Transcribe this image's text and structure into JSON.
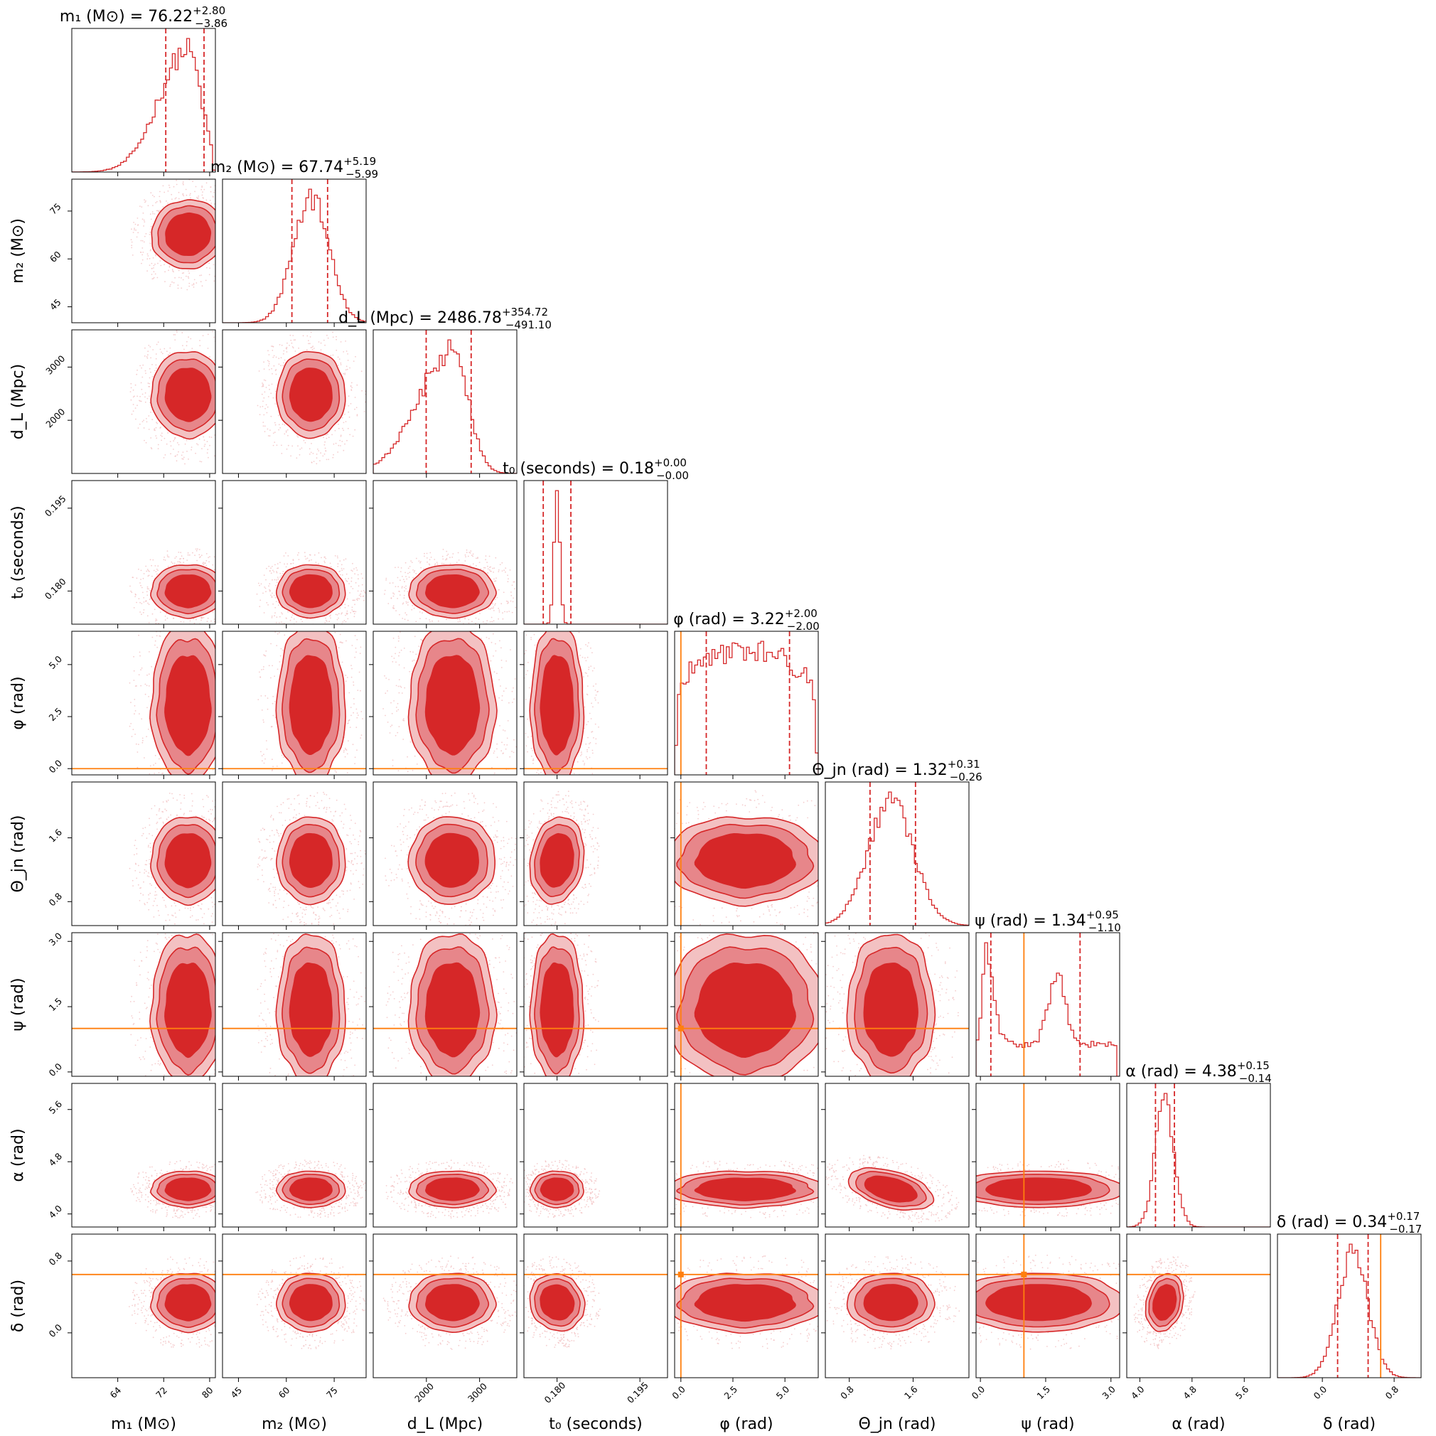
{
  "colors": {
    "posterior": "#d62728",
    "level_light": "#f3c1c2",
    "level_mid": "#e7868a",
    "level_core": "#d62728",
    "truth": "#ff7f0e",
    "frame": "#000000",
    "background": "#ffffff"
  },
  "chart_data": {
    "type": "corner",
    "parameters": [
      {
        "key": "m1",
        "label": "m1 (M⊙)",
        "axis_label": "m₁ (M⊙)",
        "title": "m₁ (M⊙) = 76.22",
        "median": 76.22,
        "plus": "+2.80",
        "minus": "−3.86",
        "range": [
          56,
          81
        ],
        "ticks": [
          64,
          72,
          80
        ],
        "truth": null,
        "dist": "skew",
        "kde_width": 0.22
      },
      {
        "key": "m2",
        "label": "m2 (M⊙)",
        "axis_label": "m₂ (M⊙)",
        "title": "m₂ (M⊙) = 67.74",
        "median": 67.74,
        "plus": "+5.19",
        "minus": "−5.99",
        "range": [
          40,
          85
        ],
        "ticks": [
          45,
          60,
          75
        ],
        "truth": null,
        "dist": "gauss",
        "kde_width": 0.22
      },
      {
        "key": "dL",
        "label": "dL (Mpc)",
        "axis_label": "d_L (Mpc)",
        "title": "d_L (Mpc) = 2486.78",
        "median": 2486.78,
        "plus": "+354.72",
        "minus": "−491.10",
        "range": [
          1000,
          3700
        ],
        "ticks": [
          2000,
          3000
        ],
        "truth": null,
        "dist": "skew",
        "kde_width": 0.22
      },
      {
        "key": "t0",
        "label": "t0 (seconds)",
        "axis_label": "t₀ (seconds)",
        "title": "t₀ (seconds) = 0.18",
        "median": 0.18,
        "plus": "+0.00",
        "minus": "−0.00",
        "range": [
          0.174,
          0.2
        ],
        "ticks": [
          0.18,
          0.195
        ],
        "tick_labels": [
          "0.180",
          "0.195"
        ],
        "truth": null,
        "dist": "gauss",
        "kde_width": 0.14
      },
      {
        "key": "phi",
        "label": "φ (rad)",
        "axis_label": "φ (rad)",
        "title": "φ (rad) = 3.22",
        "median": 3.22,
        "plus": "+2.00",
        "minus": "−2.00",
        "range": [
          -0.3,
          6.6
        ],
        "ticks": [
          0,
          2.5,
          5
        ],
        "tick_labels": [
          "0.0",
          "2.5",
          "5.0"
        ],
        "truth": 0.0,
        "dist": "flat",
        "kde_width": 0.3
      },
      {
        "key": "theta_jn",
        "label": "Θjn (rad)",
        "axis_label": "Θ_jn (rad)",
        "title": "Θ_jn (rad) = 1.32",
        "median": 1.32,
        "plus": "+0.31",
        "minus": "−0.26",
        "range": [
          0.5,
          2.3
        ],
        "ticks": [
          0.8,
          1.6
        ],
        "truth": null,
        "dist": "gauss",
        "kde_width": 0.22
      },
      {
        "key": "psi",
        "label": "ψ (rad)",
        "axis_label": "ψ (rad)",
        "title": "ψ (rad) = 1.34",
        "median": 1.34,
        "plus": "+0.95",
        "minus": "−1.10",
        "range": [
          -0.1,
          3.2
        ],
        "ticks": [
          0,
          1.5,
          3
        ],
        "tick_labels": [
          "0.0",
          "1.5",
          "3.0"
        ],
        "truth": 1.0,
        "dist": "bimodal",
        "kde_width": 0.3
      },
      {
        "key": "alpha",
        "label": "α (rad)",
        "axis_label": "α (rad)",
        "title": "α (rad) = 4.38",
        "median": 4.38,
        "plus": "+0.15",
        "minus": "−0.14",
        "range": [
          3.8,
          6.0
        ],
        "ticks": [
          4,
          4.8,
          5.6
        ],
        "tick_labels": [
          "4.0",
          "4.8",
          "5.6"
        ],
        "truth": null,
        "dist": "gauss",
        "kde_width": 0.14
      },
      {
        "key": "delta",
        "label": "δ (rad)",
        "axis_label": "δ (rad)",
        "title": "δ (rad) = 0.34",
        "median": 0.34,
        "plus": "+0.17",
        "minus": "−0.17",
        "range": [
          -0.5,
          1.1
        ],
        "ticks": [
          0,
          0.8
        ],
        "tick_labels": [
          "0.0",
          "0.8"
        ],
        "truth": 0.65,
        "dist": "gauss",
        "kde_width": 0.14
      }
    ],
    "quantiles": [
      0.16,
      0.84
    ],
    "quantile_values": {
      "m1": [
        72.36,
        79.02
      ],
      "m2": [
        61.75,
        72.93
      ],
      "dL": [
        1995.68,
        2841.5
      ],
      "t0": [
        0.1775,
        0.1825
      ],
      "phi": [
        1.22,
        5.22
      ],
      "theta_jn": [
        1.06,
        1.63
      ],
      "psi": [
        0.24,
        2.29
      ],
      "alpha": [
        4.24,
        4.53
      ],
      "delta": [
        0.17,
        0.51
      ]
    },
    "correlations": {
      "m1|m2": 0.35,
      "dL|theta_jn": -0.55,
      "t0|delta": 0.8,
      "alpha|theta_jn": -0.35,
      "alpha|delta": -0.3,
      "t0|theta_jn": -0.2,
      "m1|dL": 0.05
    },
    "hist_bins": 50,
    "legend": "none",
    "grid": false
  }
}
